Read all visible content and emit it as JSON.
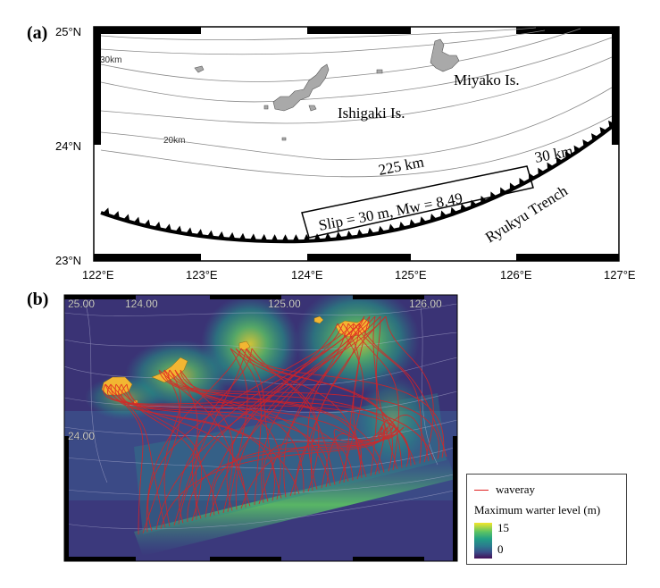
{
  "panel_a": {
    "label": "(a)",
    "lon_labels": [
      "122°E",
      "123°E",
      "124°E",
      "125°E",
      "126°E",
      "127°E"
    ],
    "lat_labels": [
      "25°N",
      "24°N",
      "23°N"
    ],
    "islands": [
      "Miyako Is.",
      "Ishigaki Is."
    ],
    "contours": [
      "30km",
      "20km"
    ],
    "fault": {
      "length": "225 km",
      "width": "30 km",
      "slip_text": "Slip = 30 m, Mw = 8.49"
    },
    "trench": "Ryukyu Trench"
  },
  "panel_b": {
    "label": "(b)",
    "lon_labels": [
      "25.00",
      "124.00",
      "125.00",
      "126.00"
    ],
    "lat_label": "24.00",
    "legend": {
      "waveray": "waveray",
      "title": "Maximum warter level (m)",
      "max": "15",
      "min": "0"
    }
  },
  "colors": {
    "waveray": "#e02020",
    "land": "#f2b632",
    "ocean_dark": "#440e57",
    "ocean_mid": "#2b7b8e",
    "high": "#f4e62a"
  }
}
